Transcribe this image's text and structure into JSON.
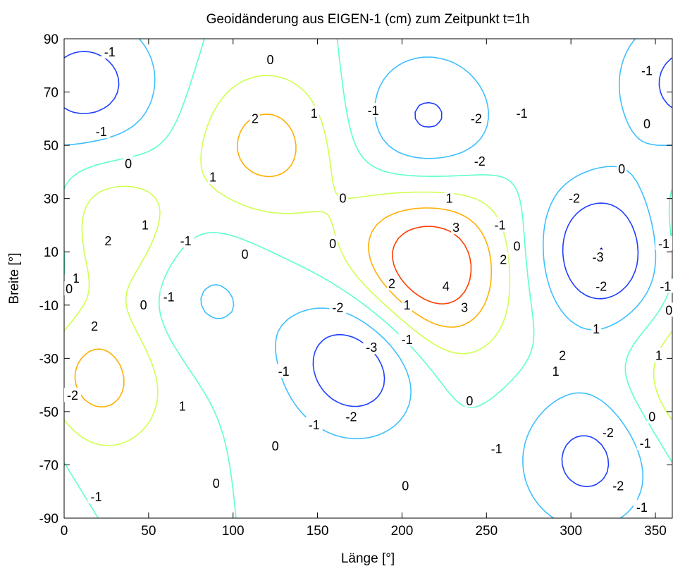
{
  "chart_data": {
    "type": "contour",
    "title": "Geoidänderung aus EIGEN-1 (cm) zum Zeitpunkt t=1h",
    "xlabel": "Länge [°]",
    "ylabel": "Breite [°]",
    "xlim": [
      0,
      360
    ],
    "ylim": [
      -90,
      90
    ],
    "xticks": [
      "0",
      "50",
      "100",
      "150",
      "200",
      "250",
      "300",
      "350"
    ],
    "xtick_values": [
      0,
      50,
      100,
      150,
      200,
      250,
      300,
      350
    ],
    "yticks": [
      "90",
      "70",
      "50",
      "30",
      "10",
      "-10",
      "-30",
      "-50",
      "-70",
      "-90"
    ],
    "ytick_values": [
      90,
      70,
      50,
      30,
      10,
      -10,
      -30,
      -50,
      -70,
      -90
    ],
    "levels": [
      -3,
      -2,
      -1,
      0,
      1,
      2,
      3,
      4
    ],
    "level_colors": {
      "-3": "#00008f",
      "-2": "#1f3fff",
      "-1": "#3fbfff",
      "0": "#5fffcf",
      "1": "#cfff4f",
      "2": "#ffaf00",
      "3": "#ff3f00",
      "4": "#9f0000"
    },
    "field_features": [
      {
        "kind": "high",
        "lon": 215,
        "lat": 4,
        "peak": 4.3,
        "label": "4"
      },
      {
        "kind": "high",
        "lon": 120,
        "lat": 50,
        "peak": 2.4,
        "label": "2"
      },
      {
        "kind": "high",
        "lon": 20,
        "lat": -38,
        "peak": 2.4,
        "label": "2"
      },
      {
        "kind": "high",
        "lon": 28,
        "lat": 18,
        "peak": 2.1,
        "label": "2"
      },
      {
        "kind": "low",
        "lon": 175,
        "lat": -30,
        "peak": -3.3,
        "label": "-3"
      },
      {
        "kind": "low",
        "lon": 320,
        "lat": 10,
        "peak": -3.2,
        "label": "-3"
      },
      {
        "kind": "low",
        "lon": 215,
        "lat": 57,
        "peak": -2.4,
        "label": "-2"
      },
      {
        "kind": "low",
        "lon": 310,
        "lat": -68,
        "peak": -2.3,
        "label": "-2"
      },
      {
        "kind": "low",
        "lon": 25,
        "lat": 70,
        "peak": -1.4,
        "label": "-1"
      },
      {
        "kind": "low",
        "lon": 80,
        "lat": -6,
        "peak": -1.3,
        "label": "-1"
      },
      {
        "kind": "low",
        "lon": 360,
        "lat": 75,
        "peak": -1.3,
        "label": "-1"
      }
    ],
    "contour_labels": [
      {
        "text": "-1",
        "lon": 27,
        "lat": 85
      },
      {
        "text": "0",
        "lon": 122,
        "lat": 82
      },
      {
        "text": "-1",
        "lon": 22,
        "lat": 55
      },
      {
        "text": "0",
        "lon": 38,
        "lat": 43
      },
      {
        "text": "2",
        "lon": 113,
        "lat": 60
      },
      {
        "text": "1",
        "lon": 148,
        "lat": 62
      },
      {
        "text": "1",
        "lon": 88,
        "lat": 38
      },
      {
        "text": "-1",
        "lon": 183,
        "lat": 63
      },
      {
        "text": "-2",
        "lon": 244,
        "lat": 60
      },
      {
        "text": "-1",
        "lon": 271,
        "lat": 62
      },
      {
        "text": "-2",
        "lon": 246,
        "lat": 44
      },
      {
        "text": "0",
        "lon": 345,
        "lat": 58
      },
      {
        "text": "-1",
        "lon": 345,
        "lat": 78
      },
      {
        "text": "0",
        "lon": 330,
        "lat": 41
      },
      {
        "text": "0",
        "lon": 165,
        "lat": 30
      },
      {
        "text": "1",
        "lon": 228,
        "lat": 30
      },
      {
        "text": "-2",
        "lon": 302,
        "lat": 30
      },
      {
        "text": "-1",
        "lon": 258,
        "lat": 20
      },
      {
        "text": "3",
        "lon": 232,
        "lat": 19
      },
      {
        "text": "0",
        "lon": 268,
        "lat": 12
      },
      {
        "text": "2",
        "lon": 260,
        "lat": 7
      },
      {
        "text": "-3",
        "lon": 316,
        "lat": 8
      },
      {
        "text": "-2",
        "lon": 318,
        "lat": -3
      },
      {
        "text": "-1",
        "lon": 355,
        "lat": 13
      },
      {
        "text": "-1",
        "lon": 356,
        "lat": -3
      },
      {
        "text": "0",
        "lon": 358,
        "lat": -12
      },
      {
        "text": "2",
        "lon": 26,
        "lat": 14
      },
      {
        "text": "1",
        "lon": 48,
        "lat": 20
      },
      {
        "text": "-1",
        "lon": 72,
        "lat": 14
      },
      {
        "text": "0",
        "lon": 107,
        "lat": 9
      },
      {
        "text": "0",
        "lon": 159,
        "lat": 13
      },
      {
        "text": "2",
        "lon": 194,
        "lat": -2
      },
      {
        "text": "4",
        "lon": 226,
        "lat": -3
      },
      {
        "text": "1",
        "lon": 7,
        "lat": 0
      },
      {
        "text": "0",
        "lon": 3,
        "lat": -4
      },
      {
        "text": "-1",
        "lon": 62,
        "lat": -7
      },
      {
        "text": "0",
        "lon": 47,
        "lat": -10
      },
      {
        "text": "1",
        "lon": 203,
        "lat": -10
      },
      {
        "text": "3",
        "lon": 237,
        "lat": -11
      },
      {
        "text": "-2",
        "lon": 162,
        "lat": -11
      },
      {
        "text": "2",
        "lon": 18,
        "lat": -18
      },
      {
        "text": "-3",
        "lon": 182,
        "lat": -26
      },
      {
        "text": "-1",
        "lon": 203,
        "lat": -23
      },
      {
        "text": "1",
        "lon": 315,
        "lat": -19
      },
      {
        "text": "2",
        "lon": 295,
        "lat": -29
      },
      {
        "text": "1",
        "lon": 291,
        "lat": -35
      },
      {
        "text": "-1",
        "lon": 130,
        "lat": -35
      },
      {
        "text": "1",
        "lon": 352,
        "lat": -29
      },
      {
        "text": "0",
        "lon": 240,
        "lat": -46
      },
      {
        "text": "-2",
        "lon": 5,
        "lat": -44
      },
      {
        "text": "1",
        "lon": 70,
        "lat": -48
      },
      {
        "text": "-2",
        "lon": 170,
        "lat": -52
      },
      {
        "text": "-1",
        "lon": 148,
        "lat": -55
      },
      {
        "text": "0",
        "lon": 348,
        "lat": -52
      },
      {
        "text": "0",
        "lon": 125,
        "lat": -63
      },
      {
        "text": "-2",
        "lon": 322,
        "lat": -58
      },
      {
        "text": "-1",
        "lon": 344,
        "lat": -62
      },
      {
        "text": "-1",
        "lon": 256,
        "lat": -64
      },
      {
        "text": "0",
        "lon": 90,
        "lat": -77
      },
      {
        "text": "0",
        "lon": 202,
        "lat": -78
      },
      {
        "text": "-2",
        "lon": 328,
        "lat": -78
      },
      {
        "text": "-1",
        "lon": 19,
        "lat": -82
      },
      {
        "text": "-1",
        "lon": 342,
        "lat": -86
      }
    ],
    "grid": false,
    "legend": "none"
  }
}
